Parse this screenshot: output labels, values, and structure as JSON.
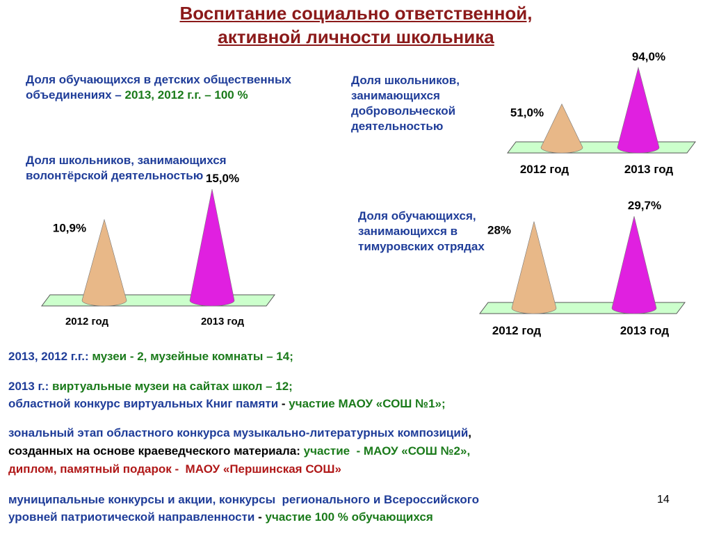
{
  "title": [
    "Воспитание социально ответственной,",
    "активной личности школьника"
  ],
  "associations": {
    "text": "Доля обучающихся в детских общественных объединениях –",
    "value": "2013, 2012 г.г. – 100 %"
  },
  "chart_data": [
    {
      "type": "cone",
      "title": "Доля школьников, занимающихся волонтёрской деятельностью",
      "categories": [
        "2012 год",
        "2013 год"
      ],
      "values": [
        10.9,
        15.0
      ],
      "value_labels": [
        "10,9%",
        "15,0%"
      ],
      "colors": [
        "#e8b888",
        "#e020e0"
      ]
    },
    {
      "type": "cone",
      "title": "Доля школьников, занимающихся добровольческой деятельностью",
      "categories": [
        "2012 год",
        "2013 год"
      ],
      "values": [
        51.0,
        94.0
      ],
      "value_labels": [
        "51,0%",
        "94,0%"
      ],
      "colors": [
        "#e8b888",
        "#e020e0"
      ]
    },
    {
      "type": "cone",
      "title": "Доля обучающихся, занимающихся в тимуровских отрядах",
      "categories": [
        "2012 год",
        "2013 год"
      ],
      "values": [
        28,
        29.7
      ],
      "value_labels": [
        "28%",
        "29,7%"
      ],
      "colors": [
        "#e8b888",
        "#e020e0"
      ]
    }
  ],
  "notes": [
    [
      {
        "text": "2013, 2012 г.г.: ",
        "color": "#1f3d99"
      },
      {
        "text": "музеи - 2, музейные комнаты – 14;",
        "color": "#1a7a1a"
      }
    ],
    [
      {
        "text": "2013 г.: ",
        "color": "#1f3d99"
      },
      {
        "text": "виртуальные музеи на сайтах школ – 12;",
        "color": "#1a7a1a"
      }
    ],
    [
      {
        "text": "областной конкурс виртуальных Книг памяти ",
        "color": "#1f3d99"
      },
      {
        "text": "- ",
        "color": "#000000"
      },
      {
        "text": "участие МАОУ «СОШ №1»;",
        "color": "#1a7a1a"
      }
    ],
    [
      {
        "text": "зональный этап областного конкурса музыкально-литературных композиций",
        "color": "#1f3d99"
      },
      {
        "text": ",",
        "color": "#000000"
      }
    ],
    [
      {
        "text": "созданных на основе краеведческого материала: ",
        "color": "#000000"
      },
      {
        "text": "участие  - МАОУ «СОШ №2»,",
        "color": "#1a7a1a"
      }
    ],
    [
      {
        "text": "диплом, памятный подарок -  МАОУ «Першинская СОШ»",
        "color": "#b01818"
      }
    ],
    [
      {
        "text": "муниципальные конкурсы и акции, конкурсы  регионального и Всероссийского",
        "color": "#1f3d99"
      }
    ],
    [
      {
        "text": "уровней патриотической направленности ",
        "color": "#1f3d99"
      },
      {
        "text": "- ",
        "color": "#000000"
      },
      {
        "text": "участие 100 % обучающихся",
        "color": "#1a7a1a"
      }
    ]
  ],
  "page_number": "14"
}
